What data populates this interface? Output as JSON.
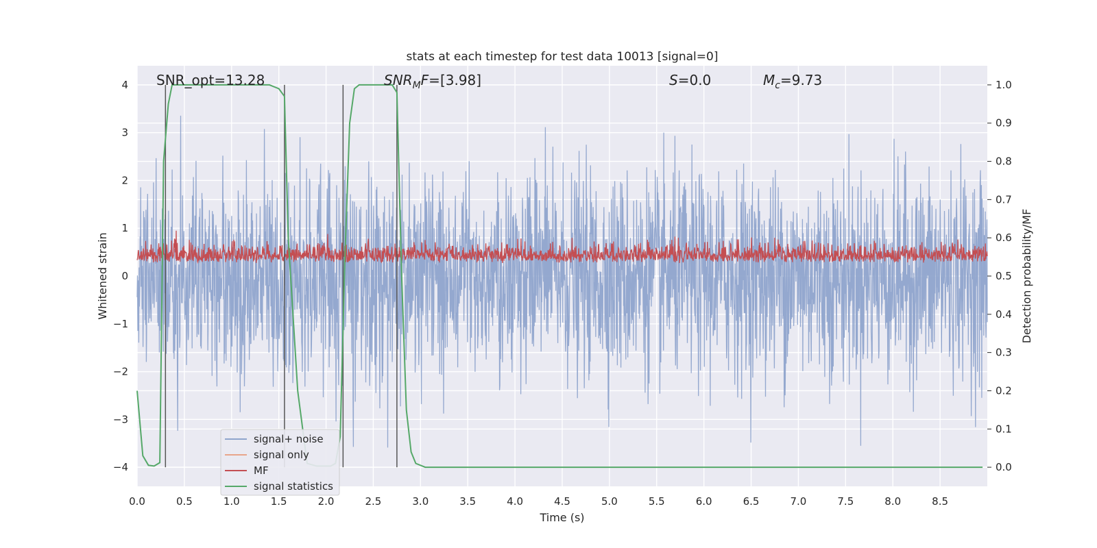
{
  "chart_data": {
    "type": "line",
    "title": "stats at each timestep for test data 10013 [signal=0]",
    "xlabel": "Time (s)",
    "ylabel": "Whitened strain",
    "y2label": "Detection probability/MF",
    "xlim": [
      0,
      9.0
    ],
    "ylim": [
      -4.4,
      4.4
    ],
    "y2lim": [
      -0.05,
      1.05
    ],
    "grid": true,
    "x_ticks": [
      0.0,
      0.5,
      1.0,
      1.5,
      2.0,
      2.5,
      3.0,
      3.5,
      4.0,
      4.5,
      5.0,
      5.5,
      6.0,
      6.5,
      7.0,
      7.5,
      8.0,
      8.5
    ],
    "y_ticks": [
      -4,
      -3,
      -2,
      -1,
      0,
      1,
      2,
      3,
      4
    ],
    "y2_ticks": [
      0.0,
      0.1,
      0.2,
      0.3,
      0.4,
      0.5,
      0.6,
      0.7,
      0.8,
      0.9,
      1.0
    ],
    "annotations": {
      "snr_opt": "SNR_opt=13.28",
      "snr_mf": "[3.98]",
      "s_value": "0.0",
      "mc_value": "9.73"
    },
    "legend_position": "lower-left",
    "series": [
      {
        "name": "signal+ noise",
        "color": "#8fa4cc",
        "axis": "left",
        "note": "whitened noise, approx. std 1.0 (peaks about ±3.5)"
      },
      {
        "name": "signal only",
        "color": "#e8a48a",
        "axis": "left",
        "values": []
      },
      {
        "name": "MF",
        "color": "#c44e52",
        "axis": "left",
        "note": "matched-filter output, approx. range 0.05 to 0.85"
      },
      {
        "name": "signal statistics",
        "color": "#55a868",
        "axis": "right",
        "x": [
          0.0,
          0.06,
          0.12,
          0.18,
          0.24,
          0.28,
          0.33,
          0.37,
          0.4,
          0.5,
          0.8,
          1.2,
          1.4,
          1.5,
          1.56,
          1.6,
          1.7,
          1.8,
          1.9,
          2.0,
          2.05,
          2.1,
          2.15,
          2.2,
          2.25,
          2.3,
          2.35,
          2.45,
          2.6,
          2.7,
          2.75,
          2.8,
          2.85,
          2.9,
          2.95,
          3.05,
          5.0,
          7.0,
          8.95
        ],
        "values": [
          0.2,
          0.03,
          0.005,
          0.003,
          0.012,
          0.8,
          0.95,
          1.0,
          1.0,
          1.0,
          1.0,
          1.0,
          1.0,
          0.99,
          0.97,
          0.6,
          0.2,
          0.01,
          0.003,
          0.003,
          0.003,
          0.01,
          0.08,
          0.55,
          0.9,
          0.99,
          1.0,
          1.0,
          1.0,
          1.0,
          0.98,
          0.5,
          0.15,
          0.04,
          0.01,
          0.0,
          0.0,
          0.0,
          0.0
        ]
      }
    ],
    "vertical_lines": {
      "name": "detection bounds",
      "color": "#555555",
      "x": [
        0.3,
        1.56,
        2.18,
        2.75
      ]
    }
  }
}
